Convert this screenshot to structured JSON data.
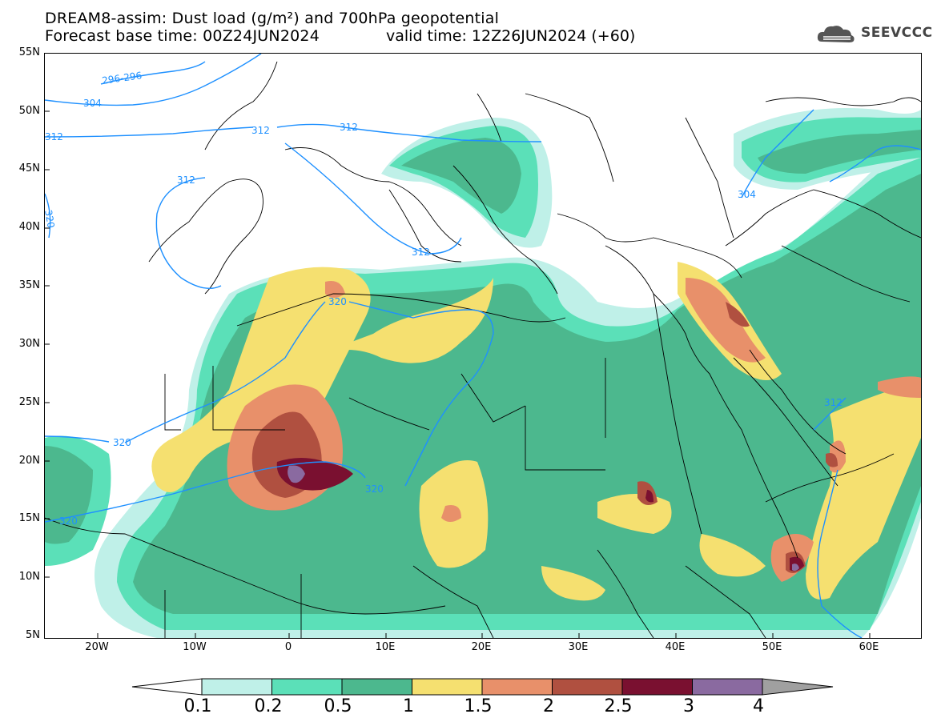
{
  "title": {
    "line1": "DREAM8-assim: Dust load (g/m²) and 700hPa geopotential",
    "line2_left": "Forecast base time: 00Z24JUN2024",
    "line2_right": "valid time: 12Z26JUN2024 (+60)"
  },
  "logo": {
    "text": "SEEVCCC",
    "icon": "cloud-logo-icon"
  },
  "map": {
    "lat_labels": [
      "55N",
      "50N",
      "45N",
      "40N",
      "35N",
      "30N",
      "25N",
      "20N",
      "15N",
      "10N",
      "5N"
    ],
    "lon_labels": [
      "20W",
      "10W",
      "0",
      "10E",
      "20E",
      "30E",
      "40E",
      "50E",
      "60E"
    ],
    "contour_labels": [
      "296-296",
      "304",
      "312",
      "312",
      "312",
      "312",
      "312",
      "320",
      "320",
      "320",
      "320",
      "304",
      "312",
      "320"
    ]
  },
  "colorbar": {
    "levels": [
      "0.1",
      "0.2",
      "0.5",
      "1",
      "1.5",
      "2",
      "2.5",
      "3",
      "4"
    ],
    "colors": [
      "#ffffff",
      "#bff0e8",
      "#5be0b8",
      "#4cb88e",
      "#f5e070",
      "#e8906a",
      "#b05040",
      "#7a1030",
      "#8a6aa0",
      "#a0a0a0"
    ]
  }
}
